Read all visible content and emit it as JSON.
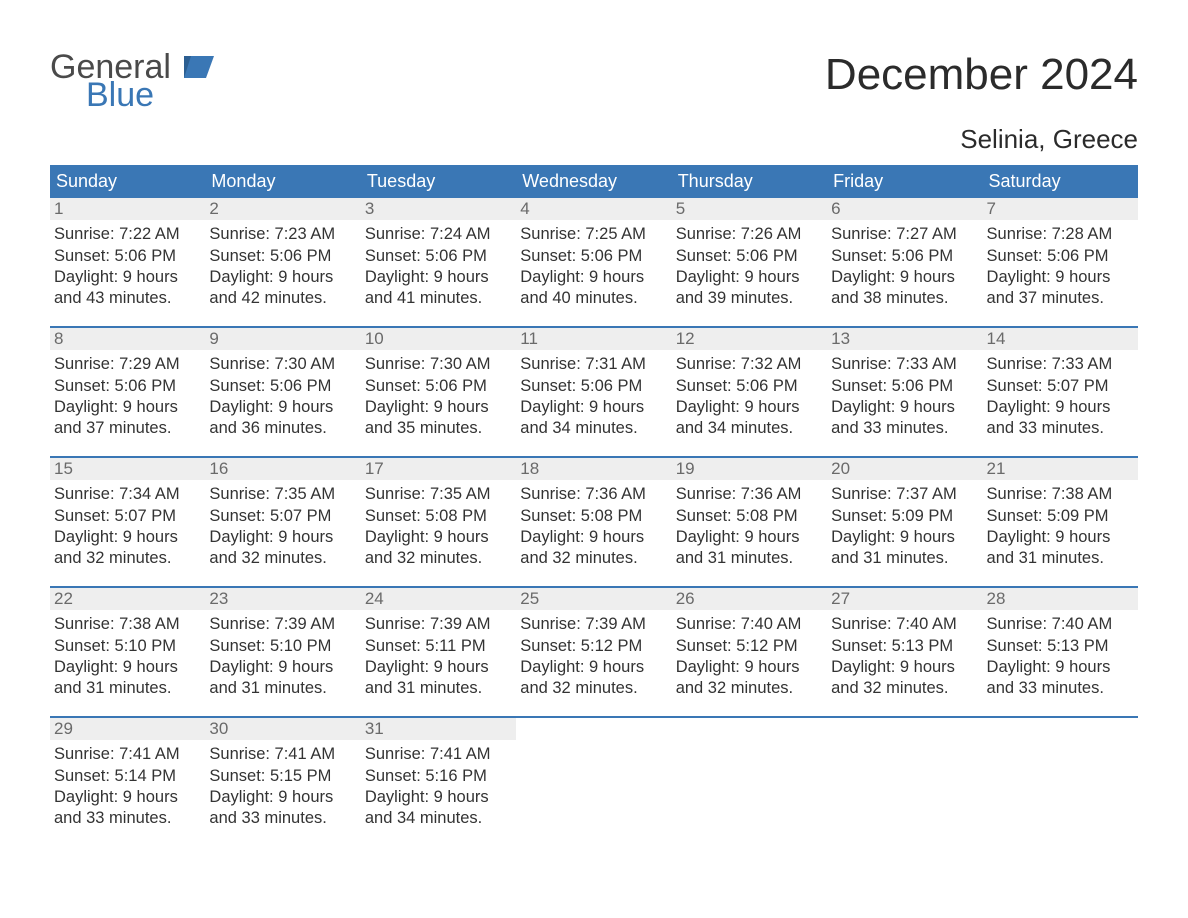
{
  "colors": {
    "header_bg": "#3a77b5",
    "header_text": "#ffffff",
    "daynum_bg": "#eeeeee",
    "daynum_text": "#6a6a6a",
    "body_text": "#333333",
    "week_border": "#3a77b5",
    "page_bg": "#ffffff",
    "logo_gray": "#4a4a4a",
    "logo_blue": "#3a77b5"
  },
  "brand": {
    "line1": "General",
    "line2": "Blue"
  },
  "title": "December 2024",
  "location": "Selinia, Greece",
  "day_headers": [
    "Sunday",
    "Monday",
    "Tuesday",
    "Wednesday",
    "Thursday",
    "Friday",
    "Saturday"
  ],
  "labels": {
    "sunrise": "Sunrise:",
    "sunset": "Sunset:",
    "daylight_prefix": "Daylight:"
  },
  "weeks": [
    [
      {
        "n": "1",
        "sunrise": "7:22 AM",
        "sunset": "5:06 PM",
        "daylight1": "Daylight: 9 hours",
        "daylight2": "and 43 minutes."
      },
      {
        "n": "2",
        "sunrise": "7:23 AM",
        "sunset": "5:06 PM",
        "daylight1": "Daylight: 9 hours",
        "daylight2": "and 42 minutes."
      },
      {
        "n": "3",
        "sunrise": "7:24 AM",
        "sunset": "5:06 PM",
        "daylight1": "Daylight: 9 hours",
        "daylight2": "and 41 minutes."
      },
      {
        "n": "4",
        "sunrise": "7:25 AM",
        "sunset": "5:06 PM",
        "daylight1": "Daylight: 9 hours",
        "daylight2": "and 40 minutes."
      },
      {
        "n": "5",
        "sunrise": "7:26 AM",
        "sunset": "5:06 PM",
        "daylight1": "Daylight: 9 hours",
        "daylight2": "and 39 minutes."
      },
      {
        "n": "6",
        "sunrise": "7:27 AM",
        "sunset": "5:06 PM",
        "daylight1": "Daylight: 9 hours",
        "daylight2": "and 38 minutes."
      },
      {
        "n": "7",
        "sunrise": "7:28 AM",
        "sunset": "5:06 PM",
        "daylight1": "Daylight: 9 hours",
        "daylight2": "and 37 minutes."
      }
    ],
    [
      {
        "n": "8",
        "sunrise": "7:29 AM",
        "sunset": "5:06 PM",
        "daylight1": "Daylight: 9 hours",
        "daylight2": "and 37 minutes."
      },
      {
        "n": "9",
        "sunrise": "7:30 AM",
        "sunset": "5:06 PM",
        "daylight1": "Daylight: 9 hours",
        "daylight2": "and 36 minutes."
      },
      {
        "n": "10",
        "sunrise": "7:30 AM",
        "sunset": "5:06 PM",
        "daylight1": "Daylight: 9 hours",
        "daylight2": "and 35 minutes."
      },
      {
        "n": "11",
        "sunrise": "7:31 AM",
        "sunset": "5:06 PM",
        "daylight1": "Daylight: 9 hours",
        "daylight2": "and 34 minutes."
      },
      {
        "n": "12",
        "sunrise": "7:32 AM",
        "sunset": "5:06 PM",
        "daylight1": "Daylight: 9 hours",
        "daylight2": "and 34 minutes."
      },
      {
        "n": "13",
        "sunrise": "7:33 AM",
        "sunset": "5:06 PM",
        "daylight1": "Daylight: 9 hours",
        "daylight2": "and 33 minutes."
      },
      {
        "n": "14",
        "sunrise": "7:33 AM",
        "sunset": "5:07 PM",
        "daylight1": "Daylight: 9 hours",
        "daylight2": "and 33 minutes."
      }
    ],
    [
      {
        "n": "15",
        "sunrise": "7:34 AM",
        "sunset": "5:07 PM",
        "daylight1": "Daylight: 9 hours",
        "daylight2": "and 32 minutes."
      },
      {
        "n": "16",
        "sunrise": "7:35 AM",
        "sunset": "5:07 PM",
        "daylight1": "Daylight: 9 hours",
        "daylight2": "and 32 minutes."
      },
      {
        "n": "17",
        "sunrise": "7:35 AM",
        "sunset": "5:08 PM",
        "daylight1": "Daylight: 9 hours",
        "daylight2": "and 32 minutes."
      },
      {
        "n": "18",
        "sunrise": "7:36 AM",
        "sunset": "5:08 PM",
        "daylight1": "Daylight: 9 hours",
        "daylight2": "and 32 minutes."
      },
      {
        "n": "19",
        "sunrise": "7:36 AM",
        "sunset": "5:08 PM",
        "daylight1": "Daylight: 9 hours",
        "daylight2": "and 31 minutes."
      },
      {
        "n": "20",
        "sunrise": "7:37 AM",
        "sunset": "5:09 PM",
        "daylight1": "Daylight: 9 hours",
        "daylight2": "and 31 minutes."
      },
      {
        "n": "21",
        "sunrise": "7:38 AM",
        "sunset": "5:09 PM",
        "daylight1": "Daylight: 9 hours",
        "daylight2": "and 31 minutes."
      }
    ],
    [
      {
        "n": "22",
        "sunrise": "7:38 AM",
        "sunset": "5:10 PM",
        "daylight1": "Daylight: 9 hours",
        "daylight2": "and 31 minutes."
      },
      {
        "n": "23",
        "sunrise": "7:39 AM",
        "sunset": "5:10 PM",
        "daylight1": "Daylight: 9 hours",
        "daylight2": "and 31 minutes."
      },
      {
        "n": "24",
        "sunrise": "7:39 AM",
        "sunset": "5:11 PM",
        "daylight1": "Daylight: 9 hours",
        "daylight2": "and 31 minutes."
      },
      {
        "n": "25",
        "sunrise": "7:39 AM",
        "sunset": "5:12 PM",
        "daylight1": "Daylight: 9 hours",
        "daylight2": "and 32 minutes."
      },
      {
        "n": "26",
        "sunrise": "7:40 AM",
        "sunset": "5:12 PM",
        "daylight1": "Daylight: 9 hours",
        "daylight2": "and 32 minutes."
      },
      {
        "n": "27",
        "sunrise": "7:40 AM",
        "sunset": "5:13 PM",
        "daylight1": "Daylight: 9 hours",
        "daylight2": "and 32 minutes."
      },
      {
        "n": "28",
        "sunrise": "7:40 AM",
        "sunset": "5:13 PM",
        "daylight1": "Daylight: 9 hours",
        "daylight2": "and 33 minutes."
      }
    ],
    [
      {
        "n": "29",
        "sunrise": "7:41 AM",
        "sunset": "5:14 PM",
        "daylight1": "Daylight: 9 hours",
        "daylight2": "and 33 minutes."
      },
      {
        "n": "30",
        "sunrise": "7:41 AM",
        "sunset": "5:15 PM",
        "daylight1": "Daylight: 9 hours",
        "daylight2": "and 33 minutes."
      },
      {
        "n": "31",
        "sunrise": "7:41 AM",
        "sunset": "5:16 PM",
        "daylight1": "Daylight: 9 hours",
        "daylight2": "and 34 minutes."
      },
      null,
      null,
      null,
      null
    ]
  ]
}
